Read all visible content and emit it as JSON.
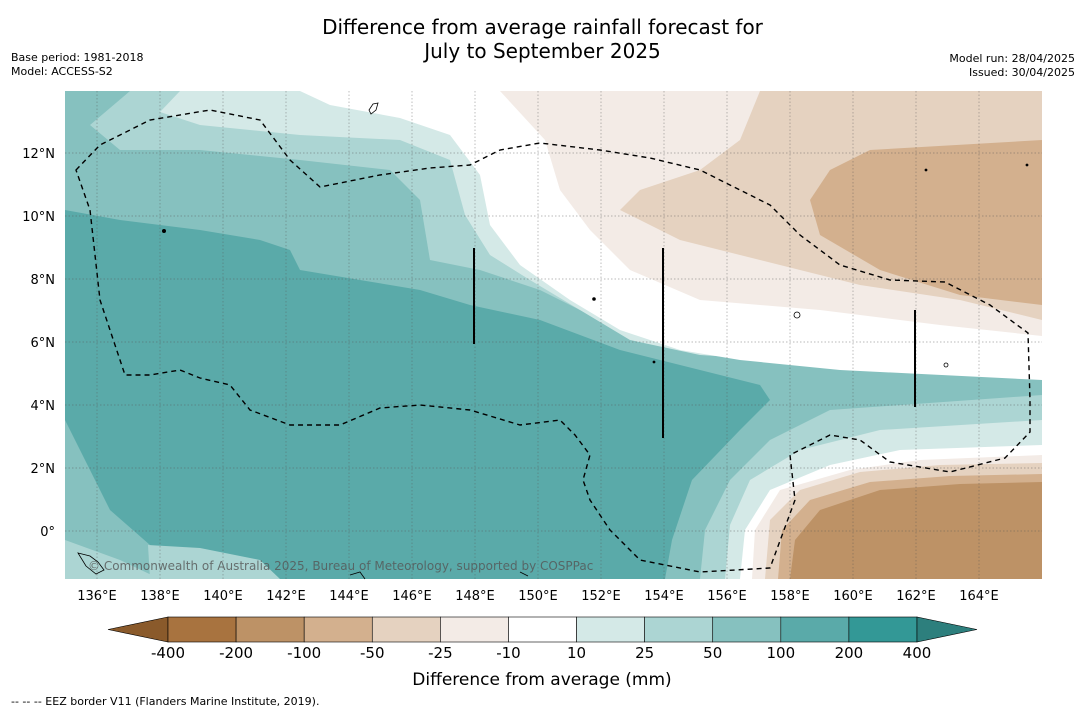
{
  "title": {
    "line1": "Difference from average rainfall forecast for",
    "line2": "July to September 2025"
  },
  "meta_left": {
    "base_period": "Base period: 1981-2018",
    "model": "Model: ACCESS-S2"
  },
  "meta_right": {
    "model_run": "Model run: 28/04/2025",
    "issued": "Issued: 30/04/2025"
  },
  "map": {
    "lon_ticks": [
      "136°E",
      "138°E",
      "140°E",
      "142°E",
      "144°E",
      "146°E",
      "148°E",
      "150°E",
      "152°E",
      "154°E",
      "156°E",
      "158°E",
      "160°E",
      "162°E",
      "164°E"
    ],
    "lat_ticks": [
      "12°N",
      "10°N",
      "8°N",
      "6°N",
      "4°N",
      "2°N",
      "0°"
    ],
    "copyright": "© Commonwealth of Australia 2025, Bureau of Meteorology, supported by COSPPac"
  },
  "legend": {
    "ticks": [
      "-400",
      "-200",
      "-100",
      "-50",
      "-25",
      "-10",
      "10",
      "25",
      "50",
      "100",
      "200",
      "400"
    ],
    "colors": [
      "#a8733f",
      "#bd9266",
      "#d3b08e",
      "#e5d2c0",
      "#f3ebe6",
      "#ffffff",
      "#d4e9e7",
      "#acd5d3",
      "#86c1bf",
      "#5aaaa9",
      "#339896"
    ],
    "under_color": "#8a5a2b",
    "over_color": "#2d7f7d",
    "label": "Difference from average (mm)"
  },
  "footnote": "--  --  -- EEZ border V11 (Flanders Marine Institute, 2019)."
}
